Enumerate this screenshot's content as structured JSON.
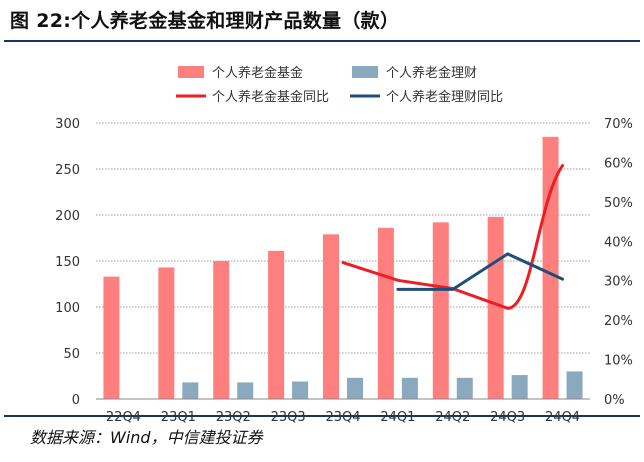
{
  "title": "图 22:个人养老金基金和理财产品数量（款）",
  "source": "数据来源：Wind，中信建投证券",
  "colors": {
    "fund_bar": "#ff7f7f",
    "wealth_bar": "#8aa9bf",
    "fund_line": "#ee1c25",
    "wealth_line": "#1f4e79",
    "grid": "#7f7f7f",
    "rule": "#17375e"
  },
  "chart_data": {
    "type": "bar",
    "categories": [
      "22Q4",
      "23Q1",
      "23Q2",
      "23Q3",
      "23Q4",
      "24Q1",
      "24Q2",
      "24Q3",
      "24Q4"
    ],
    "series": [
      {
        "name": "个人养老金基金",
        "type": "bar",
        "axis": "left",
        "values": [
          133,
          143,
          150,
          161,
          179,
          186,
          192,
          198,
          285
        ]
      },
      {
        "name": "个人养老金理财",
        "type": "bar",
        "axis": "left",
        "values": [
          null,
          18,
          18,
          19,
          23,
          23,
          23,
          26,
          30
        ]
      },
      {
        "name": "个人养老金基金同比",
        "type": "line",
        "axis": "right",
        "values": [
          null,
          null,
          null,
          null,
          34.6,
          30.1,
          28.0,
          23.0,
          59.2
        ]
      },
      {
        "name": "个人养老金理财同比",
        "type": "line",
        "axis": "right",
        "values": [
          null,
          null,
          null,
          null,
          null,
          27.8,
          27.8,
          36.8,
          30.4
        ]
      }
    ],
    "left_axis": {
      "min": 0,
      "max": 300,
      "ticks": [
        "0",
        "50",
        "100",
        "150",
        "200",
        "250",
        "300"
      ]
    },
    "right_axis": {
      "min": 0,
      "max": 70,
      "ticks": [
        "0%",
        "10%",
        "20%",
        "30%",
        "40%",
        "50%",
        "60%",
        "70%"
      ]
    },
    "grid": "dashed horizontal",
    "legend_position": "top"
  }
}
